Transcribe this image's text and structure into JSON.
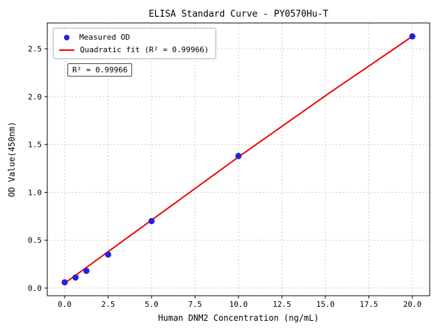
{
  "chart_data": {
    "type": "scatter",
    "title": "ELISA Standard Curve - PY0570Hu-T",
    "xlabel": "Human DNM2 Concentration (ng/mL)",
    "ylabel": "OD Value(450nm)",
    "xlim": [
      -1.0,
      21.0
    ],
    "ylim": [
      -0.08,
      2.77
    ],
    "xticks": [
      0.0,
      2.5,
      5.0,
      7.5,
      10.0,
      12.5,
      15.0,
      17.5,
      20.0
    ],
    "xtick_labels": [
      "0.0",
      "2.5",
      "5.0",
      "7.5",
      "10.0",
      "12.5",
      "15.0",
      "17.5",
      "20.0"
    ],
    "yticks": [
      0.0,
      0.5,
      1.0,
      1.5,
      2.0,
      2.5
    ],
    "ytick_labels": [
      "0.0",
      "0.5",
      "1.0",
      "1.5",
      "2.0",
      "2.5"
    ],
    "grid": true,
    "colors": {
      "points": "#2222dd",
      "fit_line": "#ee0000",
      "grid": "#c9c9c9",
      "axes": "#000000"
    },
    "legend": {
      "position": "upper-left",
      "entries": [
        {
          "label": "Measured OD",
          "type": "marker",
          "color": "#2222dd"
        },
        {
          "label": "Quadratic fit (R² = 0.99966)",
          "type": "line",
          "color": "#ee0000"
        }
      ]
    },
    "annotation": "R² = 0.99966",
    "series": [
      {
        "name": "Measured OD",
        "type": "scatter",
        "color": "#2222dd",
        "x": [
          0,
          0.625,
          1.25,
          2.5,
          5,
          10,
          20
        ],
        "y": [
          0.06,
          0.11,
          0.18,
          0.35,
          0.7,
          1.38,
          2.63
        ]
      },
      {
        "name": "Quadratic fit",
        "type": "line",
        "color": "#ee0000",
        "x": [
          0,
          2.5,
          5,
          7.5,
          10,
          12.5,
          15,
          17.5,
          20
        ],
        "y": [
          0.05,
          0.38,
          0.71,
          1.04,
          1.37,
          1.69,
          2.01,
          2.32,
          2.63
        ]
      }
    ]
  }
}
